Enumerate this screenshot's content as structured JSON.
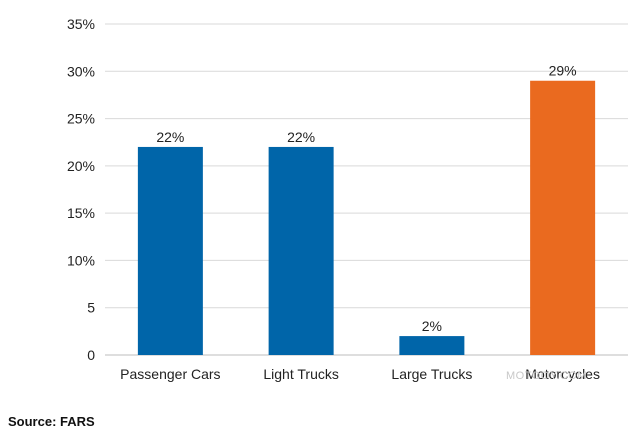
{
  "chart_data": {
    "type": "bar",
    "categories": [
      "Passenger Cars",
      "Light Trucks",
      "Large Trucks",
      "Motorcycles"
    ],
    "values": [
      22,
      22,
      2,
      29
    ],
    "data_labels": [
      "22%",
      "22%",
      "2%",
      "29%"
    ],
    "y_ticks": [
      0,
      5,
      10,
      15,
      20,
      25,
      30,
      35
    ],
    "y_tick_labels": [
      "0",
      "5",
      "10%",
      "15%",
      "20%",
      "25%",
      "30%",
      "35%"
    ],
    "ylim": [
      0,
      35
    ],
    "grid": true,
    "colors": [
      "#0065a9",
      "#0065a9",
      "#0065a9",
      "#ea6a1f"
    ],
    "xlabel": "",
    "ylabel": ""
  },
  "source": "Source: FARS",
  "watermark": "MOTOOY.COM"
}
